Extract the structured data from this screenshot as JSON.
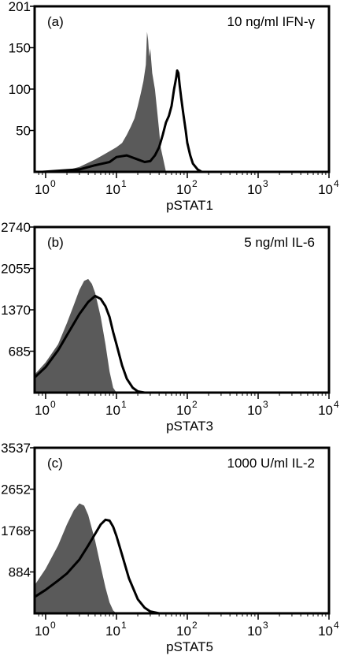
{
  "chart_data": [
    {
      "type": "area",
      "panel_label": "(a)",
      "condition": "10 ng/ml IFN-γ",
      "xlabel": "pSTAT1",
      "x_scale": "log",
      "xlim": [
        0.7,
        10000
      ],
      "x_ticks": [
        {
          "value": 1,
          "base": "10",
          "exp": "0"
        },
        {
          "value": 10,
          "base": "10",
          "exp": "1"
        },
        {
          "value": 100,
          "base": "10",
          "exp": "2"
        },
        {
          "value": 1000,
          "base": "10",
          "exp": "3"
        },
        {
          "value": 10000,
          "base": "10",
          "exp": "4"
        }
      ],
      "y_ticks": [
        "201",
        "150",
        "100",
        "50"
      ],
      "ylim": [
        0,
        201
      ],
      "series": [
        {
          "style": "filled",
          "color": "#5a5a5a",
          "x": [
            0.9,
            2,
            3,
            5,
            8,
            10,
            12,
            14,
            16,
            18,
            20,
            22,
            24,
            26,
            27,
            28,
            29,
            30,
            32,
            35,
            38,
            40,
            42,
            50
          ],
          "y": [
            0,
            2,
            6,
            15,
            25,
            30,
            35,
            45,
            55,
            65,
            80,
            95,
            110,
            130,
            170,
            160,
            140,
            150,
            120,
            100,
            70,
            50,
            30,
            0
          ]
        },
        {
          "style": "outline",
          "color": "#000000",
          "x": [
            0.9,
            2,
            3,
            5,
            8,
            10,
            14,
            20,
            25,
            30,
            35,
            40,
            45,
            50,
            55,
            60,
            65,
            70,
            72,
            75,
            78,
            82,
            88,
            95,
            100,
            110,
            120,
            140,
            160
          ],
          "y": [
            0,
            2,
            3,
            8,
            12,
            18,
            20,
            15,
            12,
            13,
            20,
            30,
            45,
            60,
            68,
            80,
            100,
            115,
            123,
            120,
            105,
            90,
            70,
            50,
            35,
            20,
            10,
            3,
            0
          ]
        }
      ]
    },
    {
      "type": "area",
      "panel_label": "(b)",
      "condition": "5 ng/ml IL-6",
      "xlabel": "pSTAT3",
      "x_scale": "log",
      "xlim": [
        0.7,
        10000
      ],
      "x_ticks": [
        {
          "value": 1,
          "base": "10",
          "exp": "0"
        },
        {
          "value": 10,
          "base": "10",
          "exp": "1"
        },
        {
          "value": 100,
          "base": "10",
          "exp": "2"
        },
        {
          "value": 1000,
          "base": "10",
          "exp": "3"
        },
        {
          "value": 10000,
          "base": "10",
          "exp": "4"
        }
      ],
      "y_ticks": [
        "2740",
        "2055",
        "1370",
        "685"
      ],
      "ylim": [
        0,
        2740
      ],
      "series": [
        {
          "style": "filled",
          "color": "#5a5a5a",
          "x": [
            0.7,
            1,
            1.5,
            2,
            2.5,
            3,
            3.5,
            4,
            4.5,
            5,
            6,
            7,
            8,
            9,
            10
          ],
          "y": [
            300,
            500,
            800,
            1150,
            1450,
            1700,
            1850,
            1880,
            1800,
            1650,
            1250,
            800,
            350,
            80,
            0
          ]
        },
        {
          "style": "outline",
          "color": "#000000",
          "x": [
            0.7,
            1,
            1.5,
            2,
            3,
            4,
            5,
            6,
            7,
            8,
            9,
            10,
            12,
            14,
            17,
            20,
            25
          ],
          "y": [
            250,
            420,
            700,
            950,
            1300,
            1500,
            1600,
            1550,
            1430,
            1250,
            1000,
            800,
            450,
            230,
            80,
            20,
            0
          ]
        }
      ]
    },
    {
      "type": "area",
      "panel_label": "(c)",
      "condition": "1000 U/ml IL-2",
      "xlabel": "pSTAT5",
      "x_scale": "log",
      "xlim": [
        0.7,
        10000
      ],
      "x_ticks": [
        {
          "value": 1,
          "base": "10",
          "exp": "0"
        },
        {
          "value": 10,
          "base": "10",
          "exp": "1"
        },
        {
          "value": 100,
          "base": "10",
          "exp": "2"
        },
        {
          "value": 1000,
          "base": "10",
          "exp": "3"
        },
        {
          "value": 10000,
          "base": "10",
          "exp": "4"
        }
      ],
      "y_ticks": [
        "3537",
        "2652",
        "1768",
        "884"
      ],
      "ylim": [
        0,
        3537
      ],
      "series": [
        {
          "style": "filled",
          "color": "#5a5a5a",
          "x": [
            0.7,
            1,
            1.5,
            2,
            2.5,
            3,
            3.5,
            4,
            5,
            6,
            7,
            8,
            9,
            10
          ],
          "y": [
            600,
            950,
            1450,
            1900,
            2200,
            2350,
            2300,
            2100,
            1550,
            1000,
            550,
            230,
            60,
            0
          ]
        },
        {
          "style": "outline",
          "color": "#000000",
          "x": [
            0.7,
            1,
            1.5,
            2,
            3,
            4,
            5,
            6,
            7,
            8,
            9,
            10,
            12,
            15,
            20,
            25,
            30,
            40
          ],
          "y": [
            350,
            500,
            700,
            850,
            1150,
            1450,
            1700,
            1900,
            2000,
            1980,
            1850,
            1650,
            1250,
            750,
            300,
            120,
            40,
            0
          ]
        }
      ]
    }
  ]
}
